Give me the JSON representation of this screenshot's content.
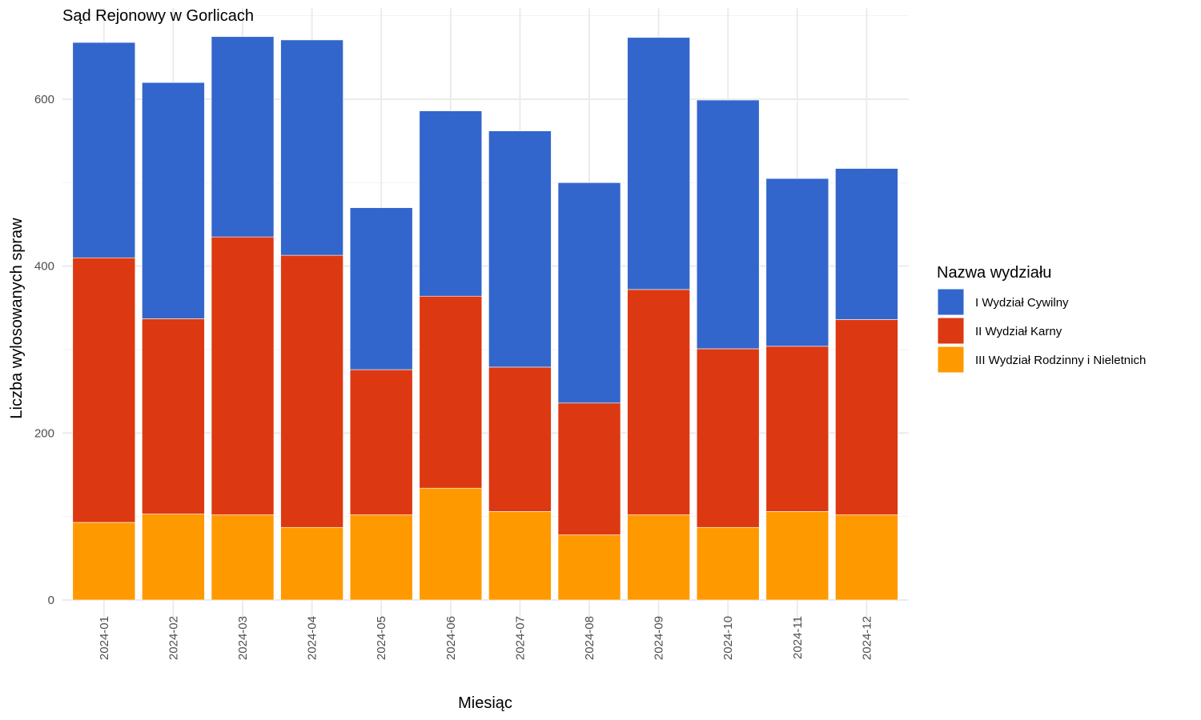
{
  "chart_data": {
    "type": "bar",
    "stacked": true,
    "title": "Sąd Rejonowy w Gorlicach",
    "xlabel": "Miesiąc",
    "ylabel": "Liczba wylosowanych spraw",
    "ylim": [
      0,
      700
    ],
    "yticks": [
      0,
      200,
      400,
      600
    ],
    "grid": true,
    "legend_title": "Nazwa wydziału",
    "legend_position": "right",
    "categories": [
      "2024-01",
      "2024-02",
      "2024-03",
      "2024-04",
      "2024-05",
      "2024-06",
      "2024-07",
      "2024-08",
      "2024-09",
      "2024-10",
      "2024-11",
      "2024-12"
    ],
    "series": [
      {
        "name": "III Wydział Rodzinny i Nieletnich",
        "color": "#FF9900",
        "values": [
          93,
          103,
          102,
          87,
          102,
          134,
          106,
          78,
          102,
          87,
          106,
          102
        ]
      },
      {
        "name": "II Wydział Karny",
        "color": "#DC3912",
        "values": [
          317,
          234,
          333,
          326,
          174,
          230,
          173,
          158,
          270,
          214,
          198,
          234
        ]
      },
      {
        "name": "I Wydział Cywilny",
        "color": "#3366CC",
        "values": [
          258,
          283,
          240,
          258,
          194,
          222,
          283,
          264,
          302,
          298,
          201,
          181
        ]
      }
    ],
    "legend_order": [
      "I Wydział Cywilny",
      "II Wydział Karny",
      "III Wydział Rodzinny i Nieletnich"
    ]
  }
}
